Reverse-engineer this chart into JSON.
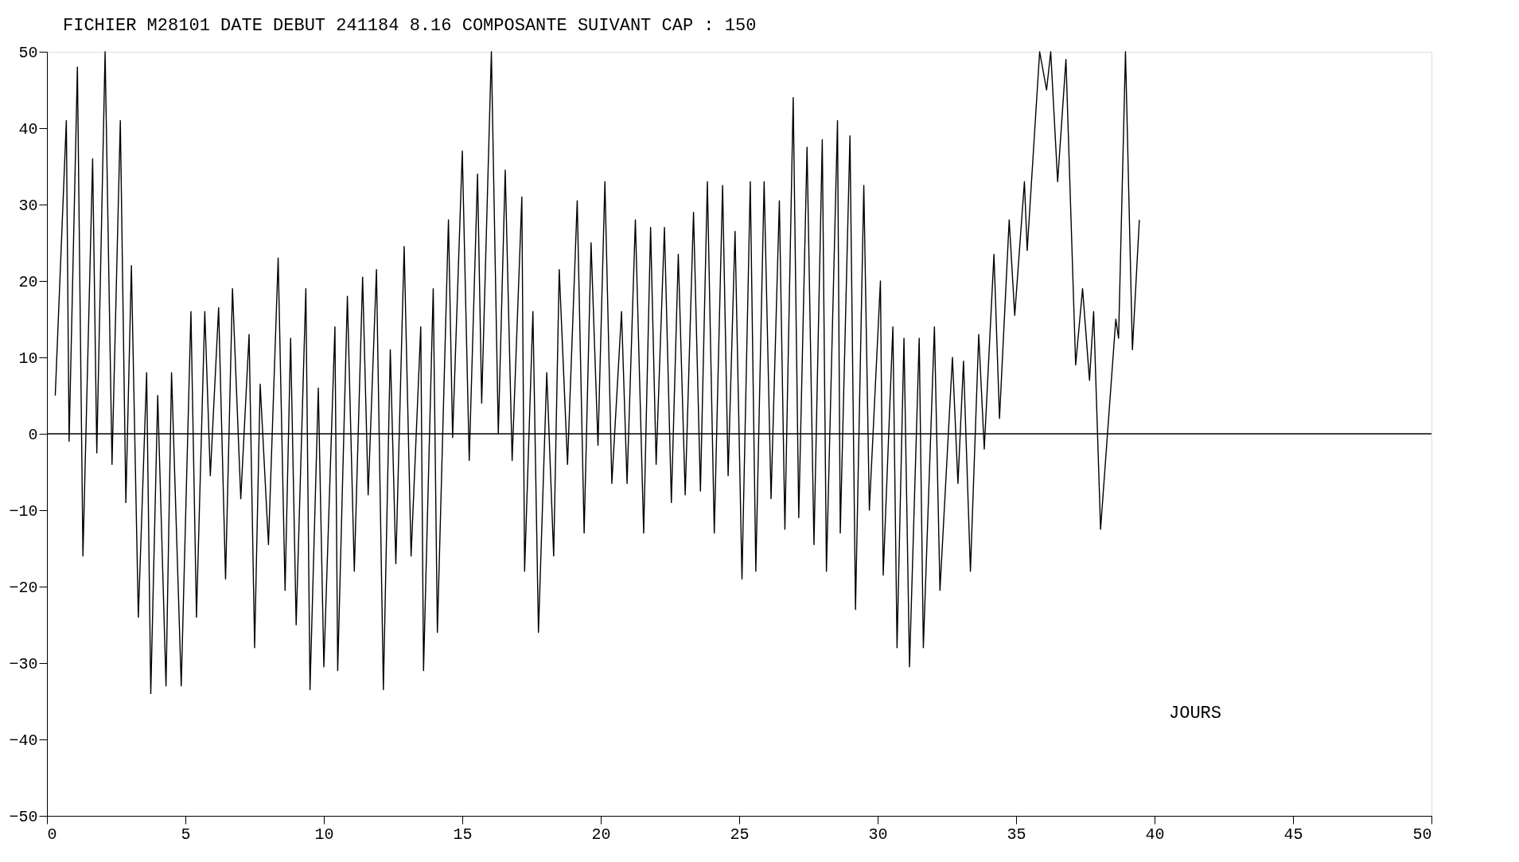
{
  "chart_data": {
    "type": "line",
    "title": "FICHIER M28101 DATE DEBUT 241184  8.16 COMPOSANTE SUIVANT CAP : 150",
    "annotations": [
      "JOURS"
    ],
    "x": [
      0.3,
      0.7,
      0.8,
      1.1,
      1.3,
      1.65,
      1.8,
      2.1,
      2.35,
      2.65,
      2.85,
      3.05,
      3.3,
      3.6,
      3.75,
      4.0,
      4.3,
      4.5,
      4.85,
      5.2,
      5.4,
      5.7,
      5.9,
      6.2,
      6.45,
      6.7,
      7.0,
      7.3,
      7.5,
      7.7,
      8.0,
      8.35,
      8.6,
      8.8,
      9.0,
      9.35,
      9.5,
      9.8,
      10.0,
      10.4,
      10.5,
      10.85,
      11.1,
      11.4,
      11.6,
      11.9,
      12.15,
      12.4,
      12.6,
      12.9,
      13.15,
      13.5,
      13.6,
      13.95,
      14.1,
      14.5,
      14.65,
      15.0,
      15.25,
      15.55,
      15.7,
      16.05,
      16.3,
      16.55,
      16.8,
      17.15,
      17.25,
      17.55,
      17.75,
      18.05,
      18.3,
      18.5,
      18.8,
      19.15,
      19.4,
      19.65,
      19.9,
      20.15,
      20.4,
      20.75,
      20.95,
      21.25,
      21.55,
      21.8,
      22.0,
      22.3,
      22.55,
      22.8,
      23.05,
      23.35,
      23.6,
      23.85,
      24.1,
      24.4,
      24.6,
      24.85,
      25.1,
      25.4,
      25.6,
      25.9,
      26.15,
      26.45,
      26.65,
      26.95,
      27.15,
      27.45,
      27.7,
      28.0,
      28.15,
      28.55,
      28.65,
      29.0,
      29.2,
      29.5,
      29.7,
      30.1,
      30.2,
      30.55,
      30.7,
      30.95,
      31.15,
      31.5,
      31.65,
      32.05,
      32.25,
      32.7,
      32.9,
      33.1,
      33.35,
      33.65,
      33.85,
      34.2,
      34.4,
      34.75,
      34.95,
      35.3,
      35.4,
      35.85,
      36.1,
      36.25,
      36.5,
      36.8,
      37.15,
      37.4,
      37.65,
      37.8,
      38.05,
      38.6,
      38.7,
      38.95,
      39.2,
      39.45
    ],
    "series": [
      {
        "color": "#000000",
        "values": [
          5,
          41,
          -1,
          48,
          -16,
          36,
          -2.5,
          50,
          -4,
          41,
          -9,
          22,
          -24,
          8,
          -34,
          5,
          -33,
          8,
          -33,
          16,
          -24,
          16,
          -5.5,
          16.5,
          -19,
          19,
          -8.5,
          13,
          -28,
          6.5,
          -14.5,
          23,
          -20.5,
          12.5,
          -25,
          19,
          -33.5,
          6,
          -30.5,
          14,
          -31,
          18,
          -18,
          20.5,
          -8,
          21.5,
          -33.5,
          11,
          -17,
          24.5,
          -16,
          14,
          -31,
          19,
          -26,
          28,
          -0.5,
          37,
          -3.5,
          34,
          4,
          50,
          0,
          34.5,
          -3.5,
          31,
          -18,
          16,
          -26,
          8,
          -16,
          21.5,
          -4,
          30.5,
          -13,
          25,
          -1.5,
          33,
          -6.5,
          16,
          -6.5,
          28,
          -13,
          27,
          -4,
          27,
          -9,
          23.5,
          -8,
          29,
          -7.5,
          33,
          -13,
          32.5,
          -5.5,
          26.5,
          -19,
          33,
          -18,
          33,
          -8.5,
          30.5,
          -12.5,
          44,
          -11,
          37.5,
          -14.5,
          38.5,
          -18,
          41,
          -13,
          39,
          -23,
          32.5,
          -10,
          20,
          -18.5,
          14,
          -28,
          12.5,
          -30.5,
          12.5,
          -28,
          14,
          -20.5,
          10,
          -6.5,
          9.5,
          -18,
          13,
          -2,
          23.5,
          2,
          28,
          15.5,
          33,
          24,
          50,
          45,
          50,
          33,
          49,
          9,
          19,
          7,
          16,
          -12.5,
          15,
          12.5,
          50,
          11,
          28
        ]
      }
    ],
    "xlim": [
      0,
      50
    ],
    "xticks": [
      0,
      5,
      10,
      15,
      20,
      25,
      30,
      35,
      40,
      45,
      50
    ],
    "ylim": [
      -50,
      50
    ],
    "yticks": [
      -50,
      -40,
      -30,
      -20,
      -10,
      0,
      10,
      20,
      30,
      40,
      50
    ],
    "ref_lines": [
      {
        "axis": "y",
        "value": 0
      }
    ],
    "grid": false,
    "marker": "none",
    "line_style": "solid"
  }
}
